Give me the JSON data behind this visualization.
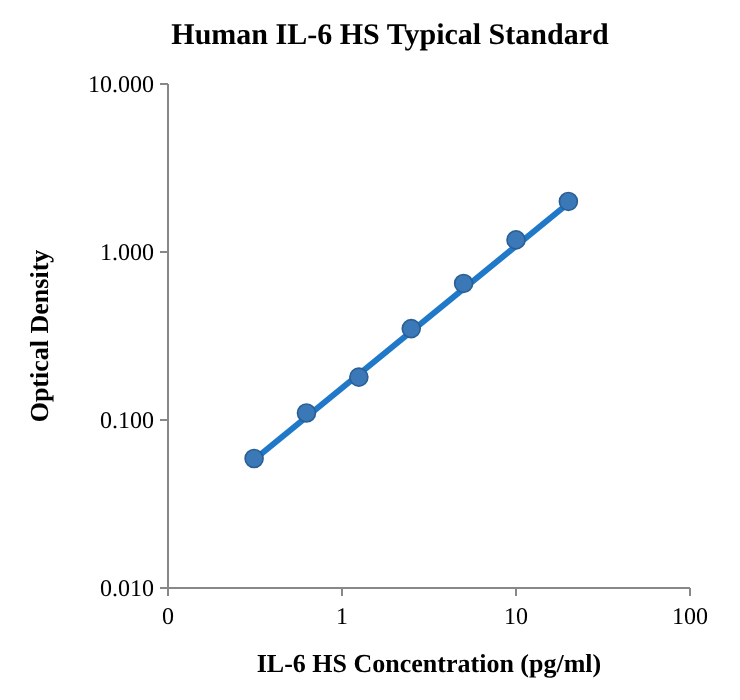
{
  "chart_data": {
    "type": "scatter",
    "title": "Human IL-6 HS Typical Standard",
    "xlabel": "IL-6 HS Concentration (pg/ml)",
    "ylabel": "Optical Density",
    "log": "xy",
    "xlim": [
      0.1,
      100
    ],
    "ylim": [
      0.01,
      10
    ],
    "xticks": [
      {
        "value": 0.1,
        "label": "0"
      },
      1,
      10,
      100
    ],
    "yticks": [
      {
        "value": 0.01,
        "label": "0.010"
      },
      {
        "value": 0.1,
        "label": "0.100"
      },
      {
        "value": 1,
        "label": "1.000"
      },
      {
        "value": 10,
        "label": "10.000"
      }
    ],
    "series": [
      {
        "type": "line",
        "color": "#1f78c8",
        "marker": "none",
        "x": [
          0.3125,
          20
        ],
        "values": [
          0.058,
          1.95
        ]
      },
      {
        "color": "#3a78b8",
        "marker": "circle",
        "x": [
          0.3125,
          0.625,
          1.25,
          2.5,
          5,
          10,
          20
        ],
        "values": [
          0.059,
          0.11,
          0.18,
          0.35,
          0.65,
          1.18,
          2.0
        ]
      }
    ]
  }
}
